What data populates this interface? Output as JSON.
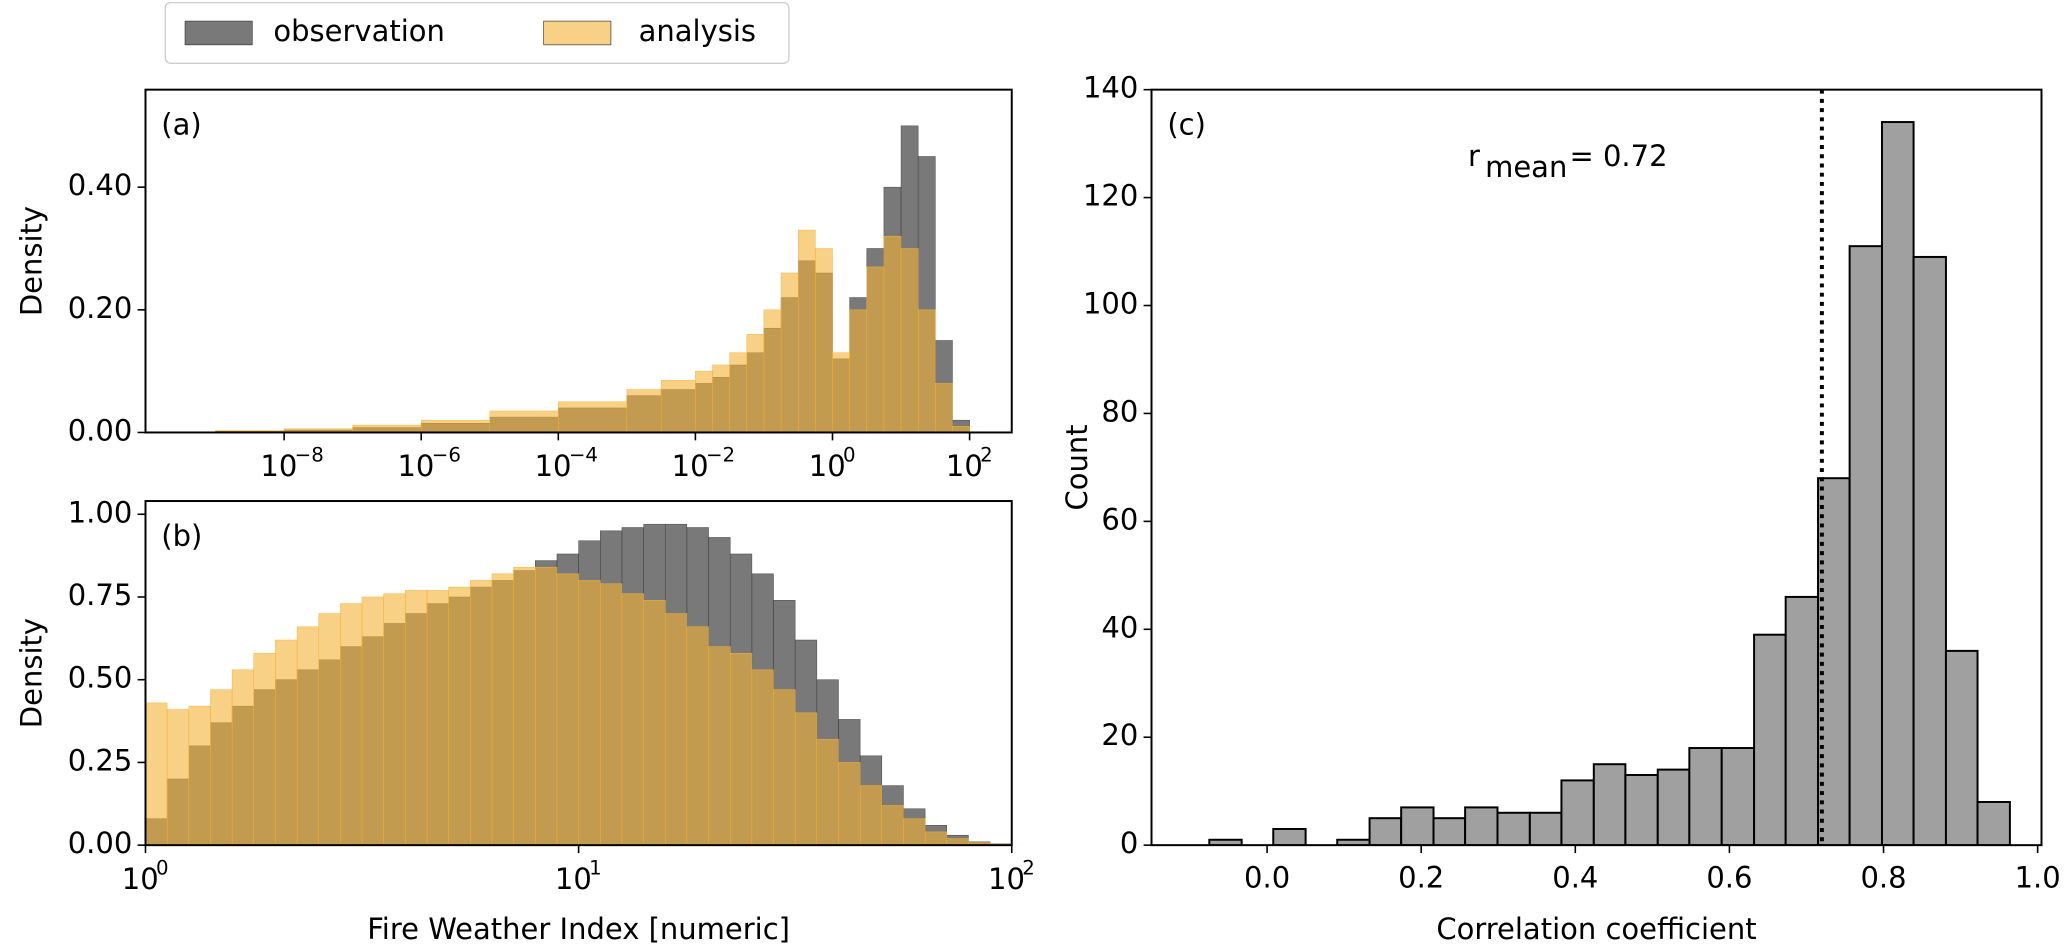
{
  "chart_data": [
    {
      "type": "histogram",
      "panel_label": "(a)",
      "ylabel": "Density",
      "xscale": "log",
      "xlim": [
        9.5e-11,
        412
      ],
      "ylim": [
        0,
        0.559
      ],
      "xticks": [
        {
          "value": 1e-08,
          "label": "10",
          "power": "−8"
        },
        {
          "value": 1e-06,
          "label": "10",
          "power": "−6"
        },
        {
          "value": 0.0001,
          "label": "10",
          "power": "−4"
        },
        {
          "value": 0.01,
          "label": "10",
          "power": "−2"
        },
        {
          "value": 1,
          "label": "10",
          "power": "0"
        },
        {
          "value": 100,
          "label": "10",
          "power": "2"
        }
      ],
      "yticks": [
        {
          "value": 0,
          "label": "0.00"
        },
        {
          "value": 0.2,
          "label": "0.20"
        },
        {
          "value": 0.4,
          "label": "0.40"
        }
      ],
      "bins": [
        1e-09,
        1e-08,
        1e-07,
        1e-06,
        1e-05,
        0.0001,
        0.001,
        0.003162,
        0.01,
        0.01778,
        0.03162,
        0.05623,
        0.1,
        0.1778,
        0.3162,
        0.5623,
        1,
        1.778,
        3.162,
        5.623,
        10,
        17.78,
        31.62,
        56.23,
        100,
        177.8
      ],
      "series": [
        {
          "name": "observation",
          "color": "#404040",
          "values": [
            0.002,
            0.004,
            0.008,
            0.015,
            0.025,
            0.04,
            0.06,
            0.07,
            0.08,
            0.09,
            0.11,
            0.13,
            0.17,
            0.22,
            0.28,
            0.26,
            0.12,
            0.22,
            0.3,
            0.4,
            0.5,
            0.45,
            0.15,
            0.02,
            0.001
          ]
        },
        {
          "name": "analysis",
          "color": "#f5b335",
          "values": [
            0.003,
            0.006,
            0.012,
            0.02,
            0.035,
            0.05,
            0.07,
            0.085,
            0.1,
            0.11,
            0.13,
            0.16,
            0.2,
            0.26,
            0.33,
            0.3,
            0.13,
            0.2,
            0.27,
            0.32,
            0.3,
            0.2,
            0.08,
            0.01,
            0.001
          ]
        }
      ]
    },
    {
      "type": "histogram",
      "panel_label": "(b)",
      "ylabel": "Density",
      "xlabel": "Fire Weather Index [numeric]",
      "xscale": "log",
      "xlim": [
        1,
        100
      ],
      "ylim": [
        0,
        1.04
      ],
      "xticks": [
        {
          "value": 1,
          "label": "10",
          "power": "0"
        },
        {
          "value": 10,
          "label": "10",
          "power": "1"
        },
        {
          "value": 100,
          "label": "10",
          "power": "2"
        }
      ],
      "yticks": [
        {
          "value": 0,
          "label": "0.00"
        },
        {
          "value": 0.25,
          "label": "0.25"
        },
        {
          "value": 0.5,
          "label": "0.50"
        },
        {
          "value": 0.75,
          "label": "0.75"
        },
        {
          "value": 1,
          "label": "1.00"
        }
      ],
      "bins": [
        1,
        1.122,
        1.259,
        1.413,
        1.585,
        1.778,
        1.995,
        2.239,
        2.512,
        2.818,
        3.162,
        3.548,
        3.981,
        4.467,
        5.012,
        5.623,
        6.31,
        7.079,
        7.943,
        8.913,
        10,
        11.22,
        12.59,
        14.13,
        15.85,
        17.78,
        19.95,
        22.39,
        25.12,
        28.18,
        31.62,
        35.48,
        39.81,
        44.67,
        50.12,
        56.23,
        63.1,
        70.79,
        79.43,
        89.13,
        100
      ],
      "series": [
        {
          "color": "#404040",
          "values": [
            0.08,
            0.2,
            0.3,
            0.37,
            0.42,
            0.47,
            0.5,
            0.53,
            0.56,
            0.6,
            0.63,
            0.67,
            0.7,
            0.73,
            0.75,
            0.78,
            0.8,
            0.83,
            0.86,
            0.88,
            0.92,
            0.95,
            0.96,
            0.97,
            0.97,
            0.96,
            0.93,
            0.88,
            0.82,
            0.74,
            0.62,
            0.5,
            0.38,
            0.27,
            0.18,
            0.11,
            0.06,
            0.03,
            0.01,
            0.004
          ]
        },
        {
          "color": "#f5b335",
          "values": [
            0.43,
            0.41,
            0.42,
            0.47,
            0.53,
            0.58,
            0.62,
            0.66,
            0.7,
            0.73,
            0.75,
            0.76,
            0.77,
            0.77,
            0.78,
            0.8,
            0.82,
            0.84,
            0.84,
            0.82,
            0.8,
            0.79,
            0.76,
            0.74,
            0.7,
            0.66,
            0.6,
            0.58,
            0.53,
            0.47,
            0.4,
            0.32,
            0.25,
            0.18,
            0.12,
            0.08,
            0.04,
            0.02,
            0.008,
            0.003
          ]
        }
      ]
    },
    {
      "type": "histogram",
      "panel_label": "(c)",
      "ylabel": "Count",
      "xlabel": "Correlation coefficient",
      "xscale": "linear",
      "xlim": [
        -0.15,
        1.005
      ],
      "ylim": [
        0,
        140
      ],
      "xticks": [
        {
          "value": 0,
          "label": "0.0"
        },
        {
          "value": 0.2,
          "label": "0.2"
        },
        {
          "value": 0.4,
          "label": "0.4"
        },
        {
          "value": 0.6,
          "label": "0.6"
        },
        {
          "value": 0.8,
          "label": "0.8"
        },
        {
          "value": 1,
          "label": "1.0"
        }
      ],
      "yticks": [
        0,
        20,
        40,
        60,
        80,
        100,
        120,
        140
      ],
      "bins": [
        -0.075,
        -0.033,
        0.008,
        0.05,
        0.091,
        0.133,
        0.174,
        0.216,
        0.257,
        0.299,
        0.341,
        0.382,
        0.424,
        0.465,
        0.507,
        0.548,
        0.59,
        0.632,
        0.673,
        0.715,
        0.756,
        0.798,
        0.839,
        0.881,
        0.922,
        0.964
      ],
      "series": [
        {
          "color": "#a0a0a0",
          "values": [
            1,
            0,
            3,
            0,
            1,
            5,
            7,
            5,
            7,
            6,
            6,
            12,
            15,
            13,
            14,
            18,
            18,
            39,
            46,
            68,
            111,
            134,
            109,
            36,
            8
          ]
        }
      ],
      "mean_line": 0.72,
      "annotation": {
        "symbol": "r",
        "subscript": "mean",
        "text": "= 0.72"
      }
    }
  ]
}
